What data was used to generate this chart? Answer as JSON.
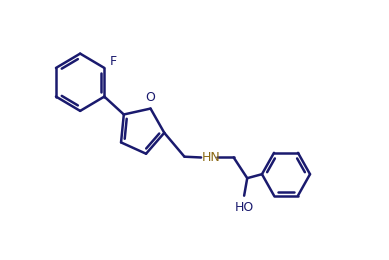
{
  "background_color": "#ffffff",
  "line_color": "#1a1a6e",
  "hn_color": "#8b6914",
  "ho_color": "#1a1a6e",
  "bond_width": 1.8,
  "figsize": [
    3.89,
    2.6
  ],
  "dpi": 100,
  "xlim": [
    0,
    10
  ],
  "ylim": [
    0,
    6.5
  ]
}
